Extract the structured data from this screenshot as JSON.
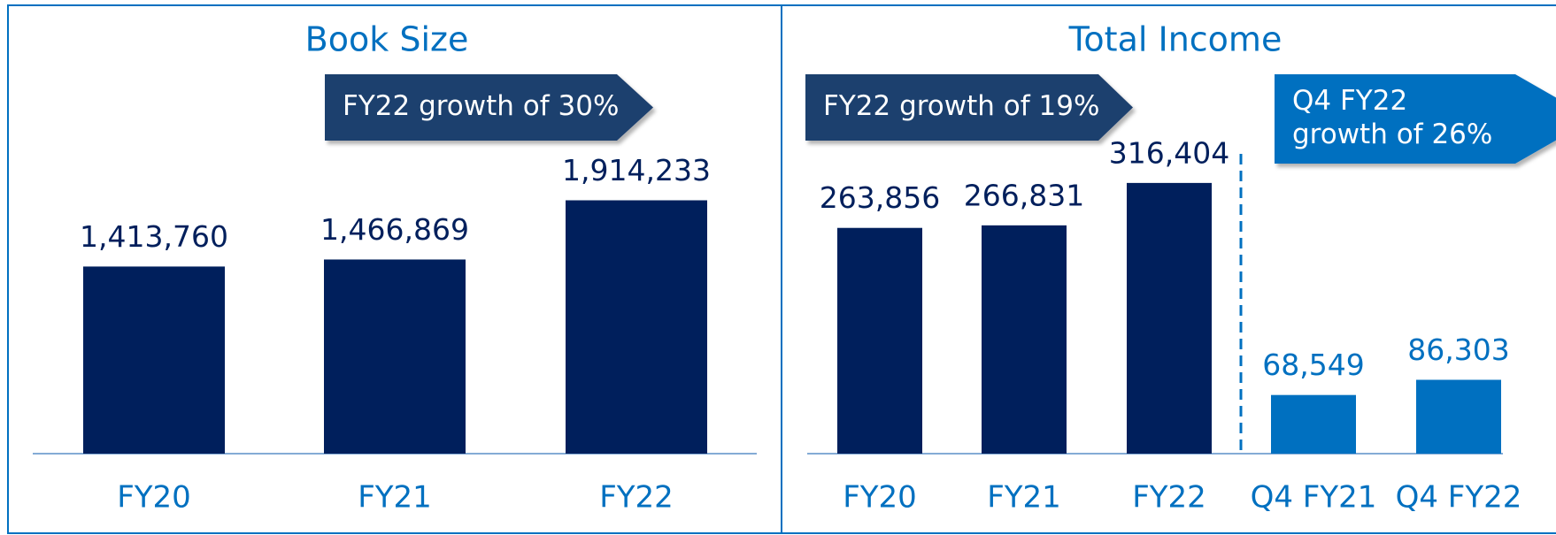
{
  "chart_data": [
    {
      "type": "bar",
      "title": "Book Size",
      "categories": [
        "FY20",
        "FY21",
        "FY22"
      ],
      "values": [
        1413760,
        1466869,
        1914233
      ],
      "value_labels": [
        "1,413,760",
        "1,466,869",
        "1,914,233"
      ],
      "colors": [
        "#001f5c",
        "#001f5c",
        "#001f5c"
      ],
      "ylim": [
        0,
        3000000
      ],
      "annotations": [
        {
          "lines": [
            "FY22 growth of 30%"
          ],
          "color": "#1f3f6e"
        }
      ]
    },
    {
      "type": "bar",
      "title": "Total Income",
      "categories": [
        "FY20",
        "FY21",
        "FY22",
        "Q4 FY21",
        "Q4 FY22"
      ],
      "values": [
        263856,
        266831,
        316404,
        68549,
        86303
      ],
      "value_labels": [
        "263,856",
        "266,831",
        "316,404",
        "68,549",
        "86,303"
      ],
      "colors": [
        "#001f5c",
        "#001f5c",
        "#001f5c",
        "#0070c0",
        "#0070c0"
      ],
      "ylim": [
        0,
        400000
      ],
      "annotations": [
        {
          "lines": [
            "FY22 growth of 19%"
          ],
          "color": "#1f3f6e"
        },
        {
          "lines": [
            "Q4 FY22",
            "growth of 26%"
          ],
          "color": "#0070c0"
        }
      ]
    }
  ]
}
